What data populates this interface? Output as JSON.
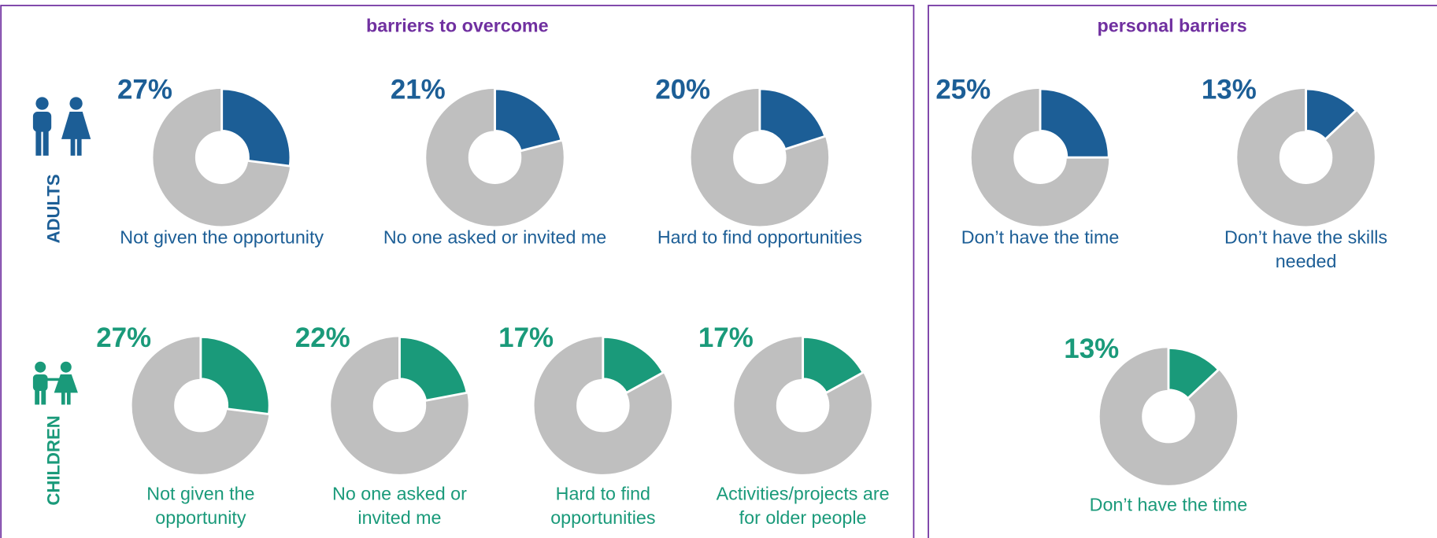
{
  "panels": [
    {
      "title": "barriers to overcome",
      "rows": [
        {
          "label": "ADULTS",
          "color": "#1c5e96",
          "items": [
            {
              "value": 27,
              "value_label": "27%",
              "label": "Not given the opportunity"
            },
            {
              "value": 21,
              "value_label": "21%",
              "label": "No one asked or invited me"
            },
            {
              "value": 20,
              "value_label": "20%",
              "label": "Hard to find opportunities"
            }
          ]
        },
        {
          "label": "CHILDREN",
          "color": "#1a9a7a",
          "items": [
            {
              "value": 27,
              "value_label": "27%",
              "label": "Not given the opportunity"
            },
            {
              "value": 22,
              "value_label": "22%",
              "label": "No one asked or invited me"
            },
            {
              "value": 17,
              "value_label": "17%",
              "label": "Hard to find opportunities"
            },
            {
              "value": 17,
              "value_label": "17%",
              "label": "Activities/projects are for older people"
            }
          ]
        }
      ]
    },
    {
      "title": "personal barriers",
      "rows": [
        {
          "color": "#1c5e96",
          "items": [
            {
              "value": 25,
              "value_label": "25%",
              "label": "Don’t have the time"
            },
            {
              "value": 13,
              "value_label": "13%",
              "label": "Don’t have the skills needed"
            }
          ]
        },
        {
          "color": "#1a9a7a",
          "items": [
            {
              "value": 13,
              "value_label": "13%",
              "label": "Don’t have the time"
            }
          ]
        }
      ]
    }
  ]
}
